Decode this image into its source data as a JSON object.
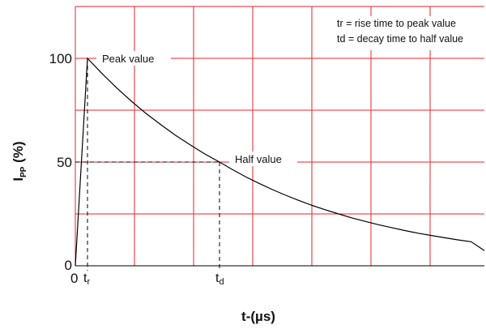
{
  "chart_data": {
    "type": "line",
    "xlabel": "t-(µs)",
    "ylabel": {
      "main": "I",
      "sub": "PP",
      "suffix": " (%)"
    },
    "ylim": [
      0,
      125
    ],
    "y_ticks": [
      "0",
      "50",
      "100"
    ],
    "x_ticks": [
      {
        "label": "0",
        "sub": ""
      },
      {
        "label": "t",
        "sub": "r"
      },
      {
        "label": "t",
        "sub": "d"
      }
    ],
    "grid": true,
    "tr": 1,
    "td": 10,
    "series": [
      {
        "x": [
          0,
          1,
          2,
          3,
          4,
          5,
          6,
          7,
          8,
          9,
          10,
          11,
          12,
          13,
          14,
          15,
          16,
          17,
          18,
          19,
          20,
          21,
          22,
          23,
          24,
          25,
          26,
          27,
          28,
          29,
          30
        ],
        "y": [
          0,
          100,
          92.6,
          85.7,
          79.3,
          73.4,
          68.0,
          62.9,
          58.3,
          53.9,
          50.0,
          46.3,
          42.8,
          39.7,
          36.7,
          34.0,
          31.5,
          29.1,
          27.0,
          25.0,
          23.1,
          21.4,
          19.8,
          18.4,
          17.0,
          15.7,
          14.6,
          13.5,
          12.5,
          11.6,
          7.3
        ]
      }
    ],
    "annotations": {
      "peak": "Peak value",
      "half": "Half value"
    },
    "legend": [
      "tr = rise time to peak value",
      "td = decay time to half value"
    ]
  }
}
